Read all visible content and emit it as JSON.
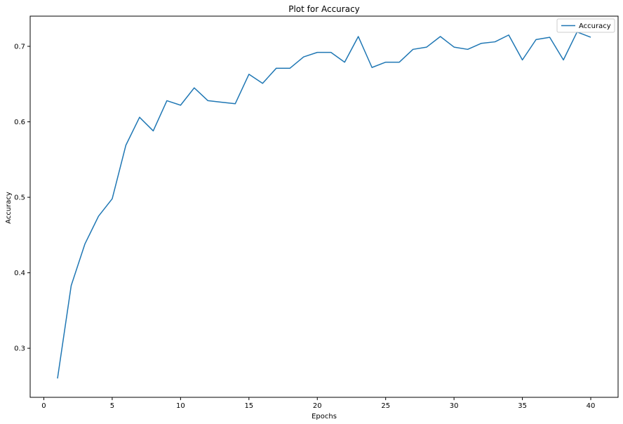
{
  "chart_data": {
    "type": "line",
    "title": "Plot for Accuracy",
    "xlabel": "Epochs",
    "ylabel": "Accuracy",
    "xlim": [
      -1,
      42
    ],
    "ylim": [
      0.235,
      0.74
    ],
    "xticks": [
      0,
      5,
      10,
      15,
      20,
      25,
      30,
      35,
      40
    ],
    "yticks": [
      0.3,
      0.4,
      0.5,
      0.6,
      0.7
    ],
    "ytick_labels": [
      "0.3",
      "0.4",
      "0.5",
      "0.6",
      "0.7"
    ],
    "grid": false,
    "legend_position": "top-right",
    "series": [
      {
        "name": "Accuracy",
        "color": "#1f77b4",
        "x": [
          1,
          2,
          3,
          4,
          5,
          6,
          7,
          8,
          9,
          10,
          11,
          12,
          13,
          14,
          15,
          16,
          17,
          18,
          19,
          20,
          21,
          22,
          23,
          24,
          25,
          26,
          27,
          28,
          29,
          30,
          31,
          32,
          33,
          34,
          35,
          36,
          37,
          38,
          39,
          40
        ],
        "y": [
          0.26,
          0.383,
          0.438,
          0.475,
          0.498,
          0.569,
          0.606,
          0.588,
          0.628,
          0.622,
          0.645,
          0.628,
          0.626,
          0.624,
          0.663,
          0.651,
          0.671,
          0.671,
          0.686,
          0.692,
          0.692,
          0.679,
          0.713,
          0.672,
          0.679,
          0.679,
          0.696,
          0.699,
          0.713,
          0.699,
          0.696,
          0.704,
          0.706,
          0.715,
          0.682,
          0.709,
          0.712,
          0.682,
          0.719,
          0.712
        ]
      }
    ]
  }
}
